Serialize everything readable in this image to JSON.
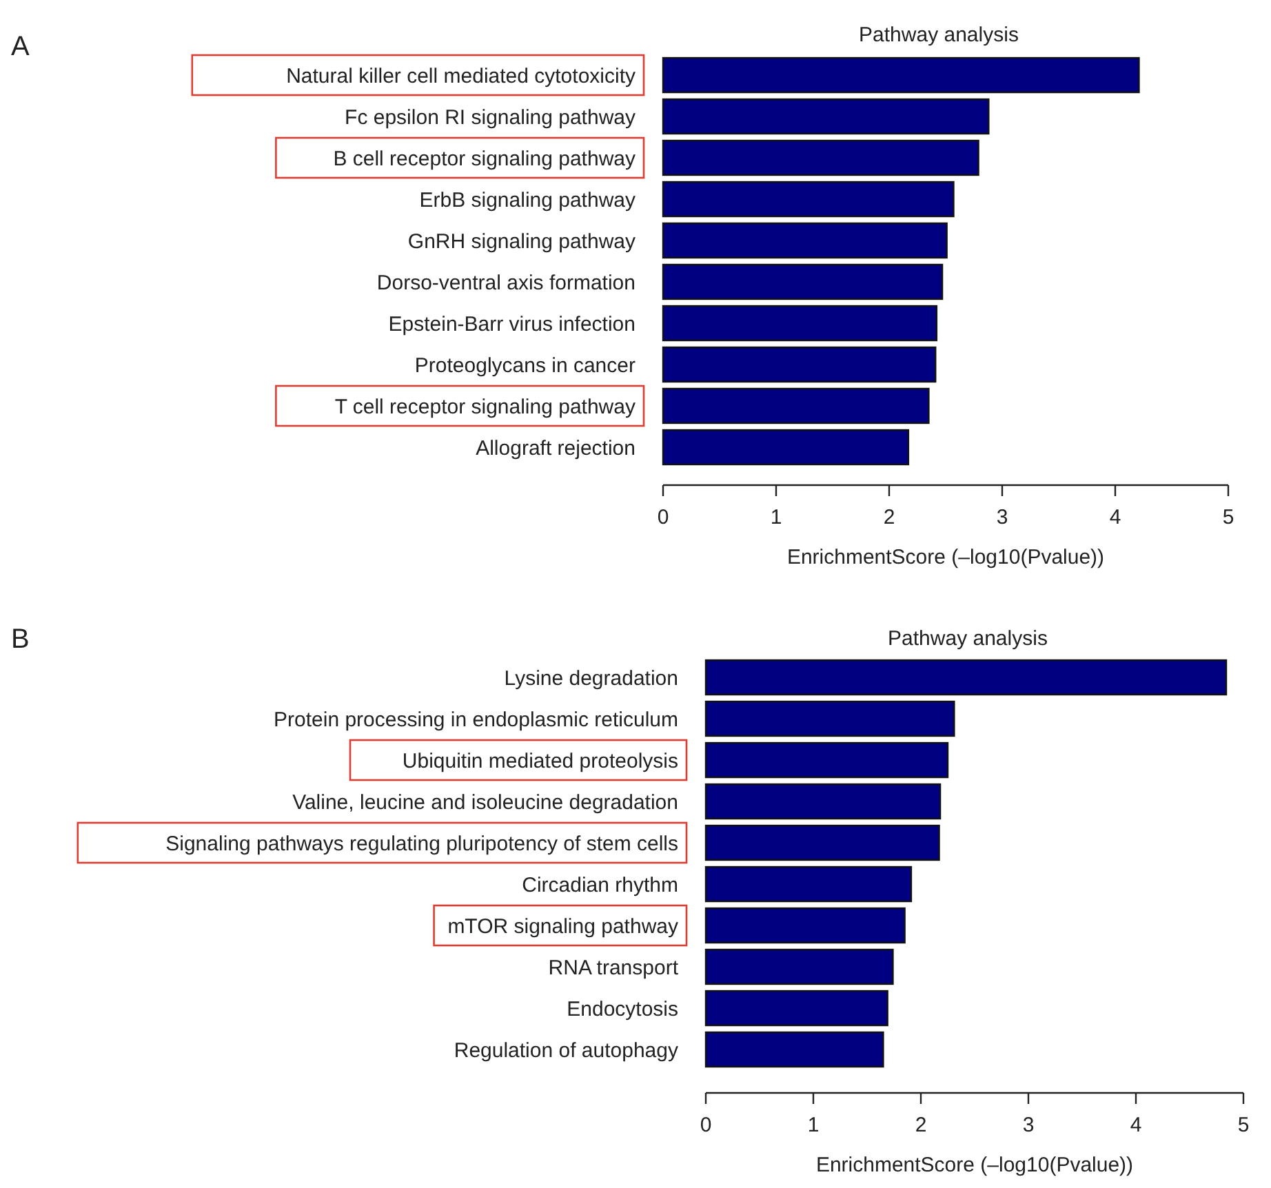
{
  "chart_data": [
    {
      "type": "bar",
      "orientation": "horizontal",
      "title": "Pathway analysis",
      "xlabel": "EnrichmentScore (–log10(Pvalue))",
      "annotations": [
        "A"
      ],
      "categories": [
        "Natural killer cell mediated cytotoxicity",
        "Fc epsilon RI signaling pathway",
        "B cell receptor signaling pathway",
        "ErbB signaling pathway",
        "GnRH signaling pathway",
        "Dorso-ventral axis formation",
        "Epstein-Barr virus infection",
        "Proteoglycans in cancer",
        "T cell receptor signaling pathway",
        "Allograft rejection"
      ],
      "values": [
        4.21,
        2.88,
        2.79,
        2.57,
        2.51,
        2.47,
        2.42,
        2.41,
        2.35,
        2.17
      ],
      "color": "#000080",
      "xlim": [
        0,
        5
      ],
      "xticks": [
        0,
        1,
        2,
        3,
        4,
        5
      ],
      "grid": false
    },
    {
      "type": "bar",
      "orientation": "horizontal",
      "title": "Pathway analysis",
      "xlabel": "EnrichmentScore (–log10(Pvalue))",
      "annotations": [
        "B"
      ],
      "categories": [
        "Lysine degradation",
        "Protein processing in endoplasmic reticulum",
        "Ubiquitin mediated proteolysis",
        "Valine, leucine and isoleucine degradation",
        "Signaling pathways regulating pluripotency of stem cells",
        "Circadian rhythm",
        "mTOR signaling pathway",
        "RNA transport",
        "Endocytosis",
        "Regulation of autophagy"
      ],
      "values": [
        4.84,
        2.31,
        2.25,
        2.18,
        2.17,
        1.91,
        1.85,
        1.74,
        1.69,
        1.65
      ],
      "color": "#000080",
      "xlim": [
        0,
        5
      ],
      "xticks": [
        0,
        1,
        2,
        3,
        4,
        5
      ],
      "grid": false
    }
  ]
}
